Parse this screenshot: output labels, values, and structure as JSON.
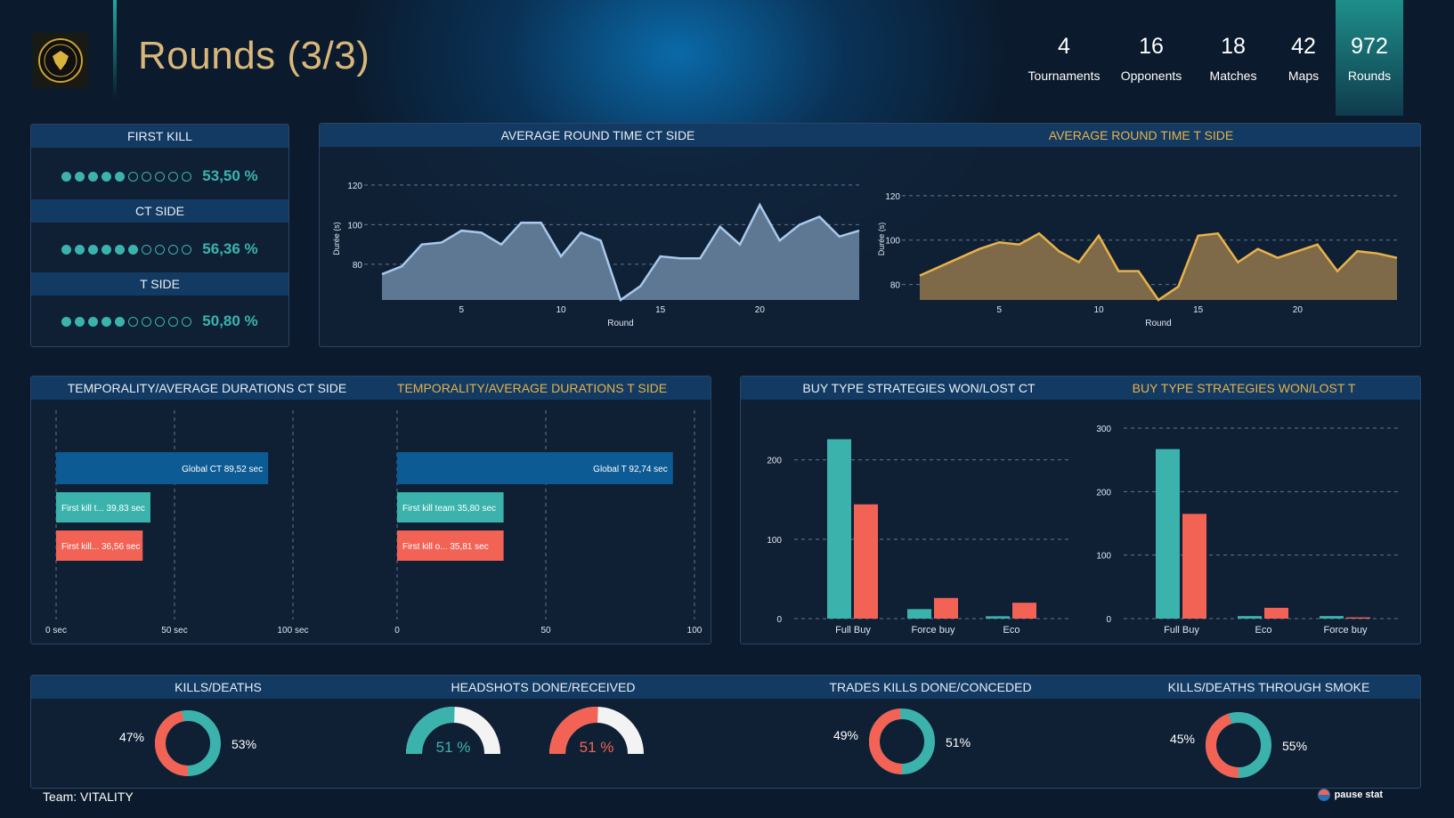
{
  "header": {
    "title": "Rounds (3/3)",
    "kpis": [
      {
        "value": "4",
        "label": "Tournaments"
      },
      {
        "value": "16",
        "label": "Opponents"
      },
      {
        "value": "18",
        "label": "Matches"
      },
      {
        "value": "42",
        "label": "Maps"
      },
      {
        "value": "972",
        "label": "Rounds"
      }
    ]
  },
  "first_kill": {
    "title": "FIRST KILL",
    "overall": {
      "dots_on": 5,
      "dots_total": 10,
      "value": "53,50 %"
    },
    "ct_label": "CT SIDE",
    "ct": {
      "dots_on": 6,
      "dots_total": 10,
      "value": "56,36 %"
    },
    "t_label": "T SIDE",
    "t": {
      "dots_on": 5,
      "dots_total": 10,
      "value": "50,80 %"
    }
  },
  "round_time": {
    "ct_title": "AVERAGE ROUND TIME CT SIDE",
    "t_title": "AVERAGE ROUND TIME T SIDE",
    "ylabel": "Durée (s)",
    "xlabel": "Round",
    "ct_color": "#a9c8ea",
    "t_color": "#e8b24a"
  },
  "temporality": {
    "ct_title": "TEMPORALITY/AVERAGE DURATIONS CT SIDE",
    "t_title": "TEMPORALITY/AVERAGE DURATIONS T SIDE"
  },
  "buy_type": {
    "ct_title": "BUY TYPE STRATEGIES WON/LOST CT",
    "t_title": "BUY TYPE STRATEGIES WON/LOST T"
  },
  "bottom": {
    "kd_title": "KILLS/DEATHS",
    "hs_title": "HEADSHOTS DONE/RECEIVED",
    "trades_title": "TRADES KILLS DONE/CONCEDED",
    "smoke_title": "KILLS/DEATHS THROUGH SMOKE",
    "kd": {
      "left": "47%",
      "right": "53%",
      "value_left": 47,
      "value_right": 53
    },
    "hs_done": {
      "value": 51,
      "label": "51 %"
    },
    "hs_received": {
      "value": 51,
      "label": "51 %"
    },
    "trades": {
      "left": "49%",
      "right": "51%",
      "value_left": 49,
      "value_right": 51
    },
    "smoke": {
      "left": "45%",
      "right": "55%",
      "value_left": 45,
      "value_right": 55
    }
  },
  "footer": {
    "team": "Team: VITALITY",
    "brand": "pause stat"
  },
  "colors": {
    "teal": "#3bb3ac",
    "red": "#f26355",
    "blue": "#0d5b94",
    "gold": "#e8b24a"
  },
  "chart_data": [
    {
      "type": "area",
      "title": "AVERAGE ROUND TIME CT SIDE",
      "xlabel": "Round",
      "ylabel": "Durée (s)",
      "x": [
        1,
        2,
        3,
        4,
        5,
        6,
        7,
        8,
        9,
        10,
        11,
        12,
        13,
        14,
        15,
        16,
        17,
        18,
        19,
        20,
        21,
        22,
        23,
        24,
        25
      ],
      "values": [
        75,
        79,
        90,
        91,
        97,
        96,
        90,
        101,
        101,
        84,
        96,
        92,
        62,
        69,
        84,
        83,
        83,
        99,
        90,
        110,
        92,
        100,
        104,
        94,
        97
      ],
      "x_ticks": [
        5,
        10,
        15,
        20
      ],
      "y_ticks": [
        80,
        100,
        120
      ],
      "ylim": [
        62,
        124
      ],
      "grid": true
    },
    {
      "type": "area",
      "title": "AVERAGE ROUND TIME T SIDE",
      "xlabel": "Round",
      "ylabel": "Durée (s)",
      "x": [
        1,
        2,
        3,
        4,
        5,
        6,
        7,
        8,
        9,
        10,
        11,
        12,
        13,
        14,
        15,
        16,
        17,
        18,
        19,
        20,
        21,
        22,
        23,
        24,
        25
      ],
      "values": [
        84,
        88,
        92,
        96,
        99,
        98,
        103,
        95,
        90,
        102,
        86,
        86,
        73,
        79,
        102,
        103,
        90,
        96,
        92,
        95,
        98,
        86,
        95,
        94,
        92
      ],
      "x_ticks": [
        5,
        10,
        15,
        20
      ],
      "y_ticks": [
        80,
        100,
        120
      ],
      "ylim": [
        73,
        128
      ],
      "grid": true
    },
    {
      "type": "bar",
      "title": "TEMPORALITY/AVERAGE DURATIONS CT SIDE",
      "orientation": "horizontal",
      "categories": [
        "Global CT",
        "First kill t...",
        "First kill..."
      ],
      "values": [
        89.52,
        39.83,
        36.56
      ],
      "labels": [
        "89,52 sec",
        "39,83 sec",
        "36,56 sec"
      ],
      "bar_colors": [
        "#0d5b94",
        "#3bb3ac",
        "#f26355"
      ],
      "x_ticks": [
        "0 sec",
        "50 sec",
        "100 sec"
      ],
      "xlim": [
        0,
        100
      ]
    },
    {
      "type": "bar",
      "title": "TEMPORALITY/AVERAGE DURATIONS T SIDE",
      "orientation": "horizontal",
      "categories": [
        "Global T",
        "First kill team",
        "First kill o..."
      ],
      "values": [
        92.74,
        35.8,
        35.81
      ],
      "labels": [
        "92,74 sec",
        "35,80 sec",
        "35,81 sec"
      ],
      "bar_colors": [
        "#0d5b94",
        "#3bb3ac",
        "#f26355"
      ],
      "x_ticks": [
        "0",
        "50",
        "100"
      ],
      "xlim": [
        0,
        100
      ]
    },
    {
      "type": "bar",
      "title": "BUY TYPE STRATEGIES WON/LOST CT",
      "categories": [
        "Full Buy",
        "Force buy",
        "Eco"
      ],
      "series": [
        {
          "values": [
            226,
            12,
            3
          ],
          "color": "#3bb3ac"
        },
        {
          "values": [
            144,
            26,
            20
          ],
          "color": "#f26355"
        }
      ],
      "y_ticks": [
        0,
        100,
        200
      ],
      "ylim": [
        0,
        240
      ],
      "grid": true
    },
    {
      "type": "bar",
      "title": "BUY TYPE STRATEGIES WON/LOST T",
      "categories": [
        "Full Buy",
        "Eco",
        "Force buy"
      ],
      "series": [
        {
          "values": [
            267,
            4,
            4
          ],
          "color": "#3bb3ac"
        },
        {
          "values": [
            165,
            17,
            2
          ],
          "color": "#f26355"
        }
      ],
      "y_ticks": [
        0,
        100,
        200,
        300
      ],
      "ylim": [
        0,
        300
      ],
      "grid": true
    }
  ]
}
